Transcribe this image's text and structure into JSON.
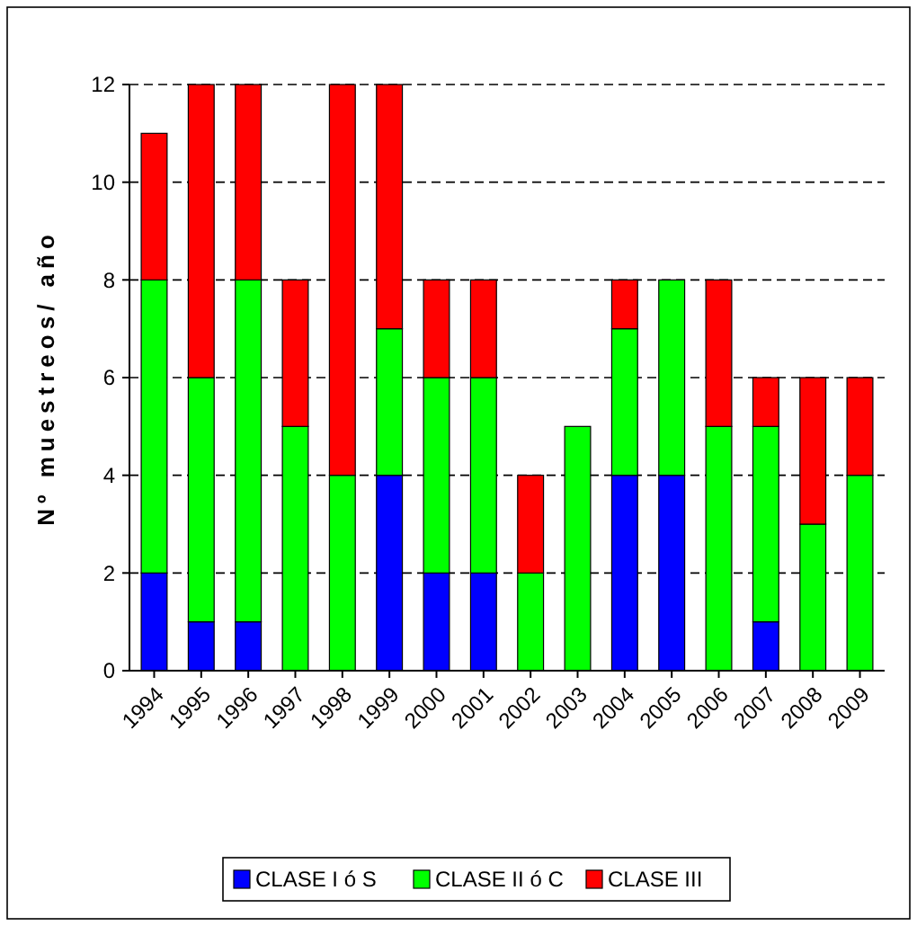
{
  "chart_data": {
    "type": "bar",
    "stacked": true,
    "ylabel": "Nº muestreos/ año",
    "categories": [
      "1994",
      "1995",
      "1996",
      "1997",
      "1998",
      "1999",
      "2000",
      "2001",
      "2002",
      "2003",
      "2004",
      "2005",
      "2006",
      "2007",
      "2008",
      "2009"
    ],
    "series": [
      {
        "name": "CLASE I ó S",
        "color": "#0000ff",
        "values": [
          2,
          1,
          1,
          0,
          0,
          4,
          2,
          2,
          0,
          0,
          4,
          4,
          0,
          1,
          0,
          0
        ]
      },
      {
        "name": "CLASE II ó C",
        "color": "#00ff00",
        "values": [
          6,
          5,
          7,
          5,
          4,
          3,
          4,
          4,
          2,
          5,
          3,
          4,
          5,
          4,
          3,
          4
        ]
      },
      {
        "name": "CLASE III",
        "color": "#ff0000",
        "values": [
          3,
          6,
          4,
          3,
          8,
          5,
          2,
          2,
          2,
          0,
          1,
          0,
          3,
          1,
          3,
          2
        ]
      }
    ],
    "ylim": [
      0,
      12
    ],
    "yticks": [
      0,
      2,
      4,
      6,
      8,
      10,
      12
    ],
    "grid": "y",
    "legend": "bottom"
  }
}
